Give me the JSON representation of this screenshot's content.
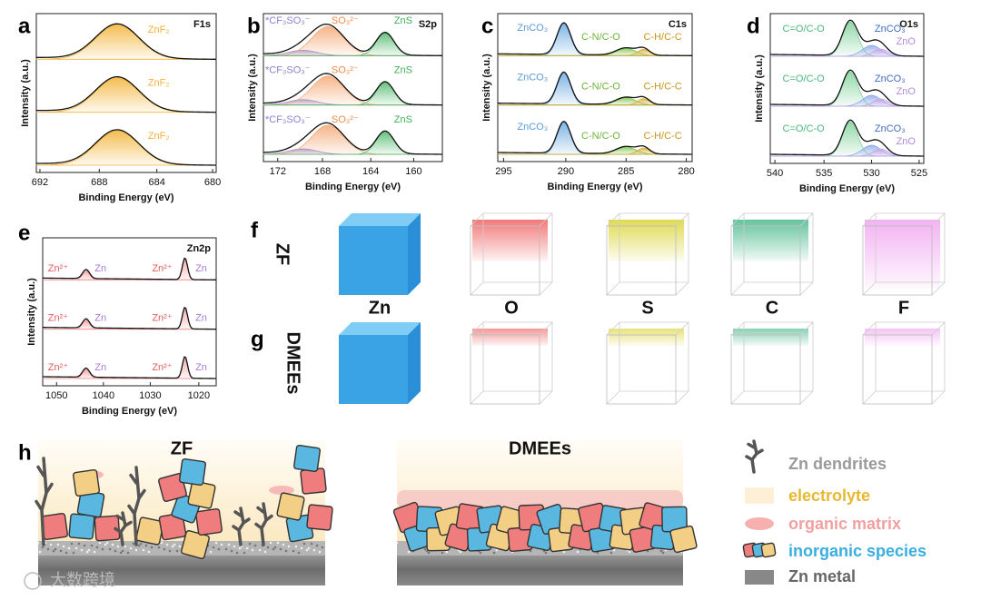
{
  "panels": {
    "a": {
      "letter": "a",
      "core": "F1s",
      "ylabel": "Intensity (a.u.)",
      "xlabel": "Binding Energy (eV)",
      "xticks": [
        692,
        688,
        684,
        680
      ],
      "peaks": [
        "ZnF₂"
      ]
    },
    "b": {
      "letter": "b",
      "core": "S2p",
      "ylabel": "Intensity (a.u.)",
      "xlabel": "Binding Energy (eV)",
      "xticks": [
        172,
        168,
        164,
        160
      ],
      "peaks": [
        "*CF₃SO₃⁻",
        "SO₃²⁻",
        "ZnS"
      ]
    },
    "c": {
      "letter": "c",
      "core": "C1s",
      "ylabel": "Intensity (a.u.)",
      "xlabel": "Binding Energy (eV)",
      "xticks": [
        295,
        290,
        285,
        280
      ],
      "peaks": [
        "ZnCO₃",
        "C-N/C-O",
        "C-H/C-C"
      ]
    },
    "d": {
      "letter": "d",
      "core": "O1s",
      "ylabel": "Intensity (a.u.)",
      "xlabel": "Binding Energy (eV)",
      "xticks": [
        540,
        535,
        530,
        525
      ],
      "peaks": [
        "C=O/C-O",
        "ZnCO₃",
        "ZnO"
      ]
    },
    "e": {
      "letter": "e",
      "core": "Zn2p",
      "ylabel": "Intensity (a.u.)",
      "xlabel": "Binding Energy (eV)",
      "xticks": [
        1050,
        1040,
        1030,
        1020
      ],
      "peaks": [
        "Zn²⁺",
        "Zn",
        "Zn²⁺",
        "Zn"
      ]
    }
  },
  "tomography": {
    "letters": [
      "f",
      "g"
    ],
    "rows": [
      "ZF",
      "DMEEs"
    ],
    "elements": [
      "Zn",
      "O",
      "S",
      "C",
      "F"
    ]
  },
  "schematic": {
    "letter": "h",
    "titles": [
      "ZF",
      "DMEEs"
    ],
    "legend": [
      "Zn dendrites",
      "electrolyte",
      "organic matrix",
      "inorganic species",
      "Zn metal"
    ]
  },
  "watermark": "大数跨境"
}
